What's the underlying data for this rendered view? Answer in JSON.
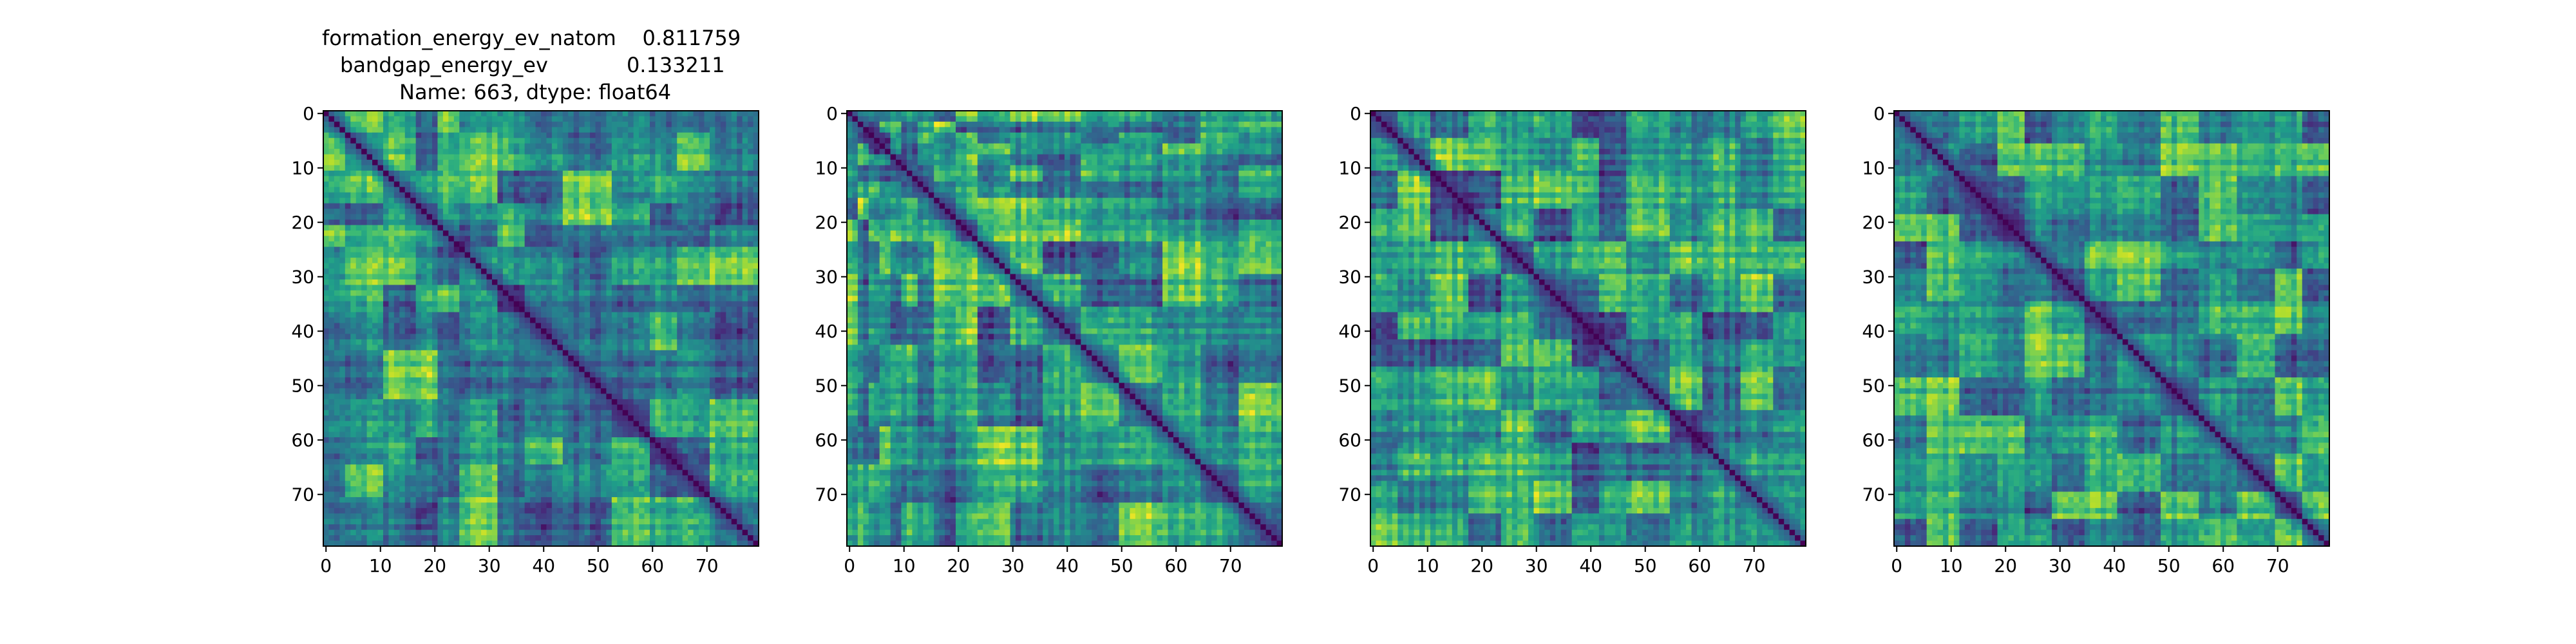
{
  "figure": {
    "title_lines": [
      "formation_energy_ev_natom    0.811759",
      "bandgap_energy_ev            0.133211",
      "Name: 663, dtype: float64"
    ]
  },
  "chart_data": [
    {
      "type": "heatmap",
      "title": "",
      "xlabel": "",
      "ylabel": "",
      "matrix_size": 80,
      "xlim": [
        0,
        80
      ],
      "ylim": [
        80,
        0
      ],
      "xticks": [
        0,
        10,
        20,
        30,
        40,
        50,
        60,
        70
      ],
      "yticks": [
        0,
        10,
        20,
        30,
        40,
        50,
        60,
        70
      ],
      "colormap": "viridis",
      "diagonal": 0,
      "block_boundaries": [
        4,
        11,
        17,
        21,
        25,
        32,
        37,
        44,
        53,
        60,
        65,
        71
      ]
    },
    {
      "type": "heatmap",
      "title": "",
      "xlabel": "",
      "ylabel": "",
      "matrix_size": 80,
      "xlim": [
        0,
        80
      ],
      "ylim": [
        80,
        0
      ],
      "xticks": [
        0,
        10,
        20,
        30,
        40,
        50,
        60,
        70
      ],
      "yticks": [
        0,
        10,
        20,
        30,
        40,
        50,
        60,
        70
      ],
      "colormap": "viridis",
      "diagonal": 0,
      "block_boundaries": [
        2,
        4,
        6,
        8,
        10,
        13,
        16,
        20,
        24,
        30,
        36,
        43,
        50,
        58,
        65,
        72
      ]
    },
    {
      "type": "heatmap",
      "title": "",
      "xlabel": "",
      "ylabel": "",
      "matrix_size": 80,
      "xlim": [
        0,
        80
      ],
      "ylim": [
        80,
        0
      ],
      "xticks": [
        0,
        10,
        20,
        30,
        40,
        50,
        60,
        70
      ],
      "yticks": [
        0,
        10,
        20,
        30,
        40,
        50,
        60,
        70
      ],
      "colormap": "viridis",
      "diagonal": 0,
      "block_boundaries": [
        5,
        11,
        18,
        24,
        30,
        37,
        42,
        47,
        55,
        61,
        68,
        74
      ]
    },
    {
      "type": "heatmap",
      "title": "",
      "xlabel": "",
      "ylabel": "",
      "matrix_size": 80,
      "xlim": [
        0,
        80
      ],
      "ylim": [
        80,
        0
      ],
      "xticks": [
        0,
        10,
        20,
        30,
        40,
        50,
        60,
        70
      ],
      "yticks": [
        0,
        10,
        20,
        30,
        40,
        50,
        60,
        70
      ],
      "colormap": "viridis",
      "diagonal": 0,
      "block_boundaries": [
        6,
        12,
        19,
        24,
        29,
        35,
        41,
        49,
        56,
        63,
        70,
        75
      ]
    }
  ]
}
